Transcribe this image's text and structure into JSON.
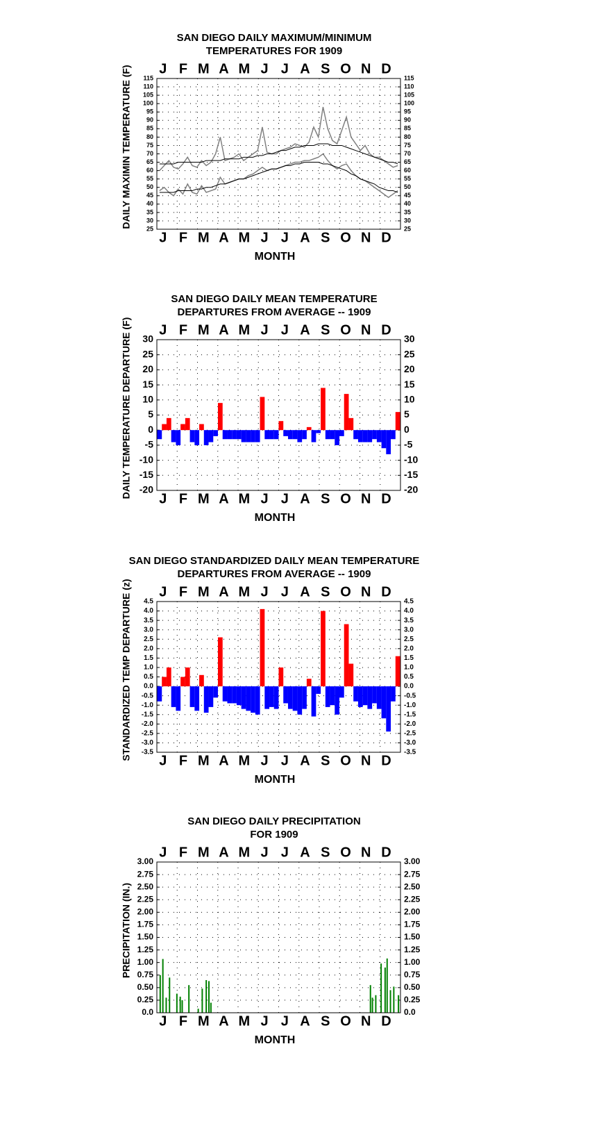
{
  "chart_data": [
    {
      "type": "line",
      "title": [
        "SAN DIEGO DAILY MAXIMUM/MINIMUM",
        "TEMPERATURES FOR 1909"
      ],
      "xlabel": "MONTH",
      "ylabel": "DAILY MAXIMIN TEMPERATURE (F)",
      "categories": [
        "J",
        "F",
        "M",
        "A",
        "M",
        "J",
        "J",
        "A",
        "S",
        "O",
        "N",
        "D"
      ],
      "xlim": [
        0,
        365
      ],
      "x": [
        4,
        11,
        18,
        25,
        32,
        39,
        46,
        53,
        60,
        67,
        74,
        81,
        88,
        95,
        102,
        109,
        116,
        123,
        130,
        137,
        144,
        151,
        158,
        165,
        172,
        179,
        186,
        193,
        200,
        207,
        214,
        221,
        228,
        235,
        242,
        249,
        256,
        263,
        270,
        277,
        284,
        291,
        298,
        305,
        312,
        319,
        326,
        333,
        340,
        347,
        354,
        361
      ],
      "series": [
        {
          "color": "#808080",
          "values": [
            60,
            63,
            66,
            62,
            61,
            64,
            68,
            63,
            62,
            66,
            63,
            65,
            70,
            80,
            66,
            67,
            68,
            70,
            66,
            68,
            70,
            72,
            86,
            71,
            70,
            70,
            72,
            73,
            74,
            76,
            75,
            74,
            77,
            86,
            80,
            98,
            85,
            78,
            76,
            84,
            92,
            80,
            76,
            72,
            75,
            70,
            68,
            68,
            66,
            64,
            62,
            63
          ]
        },
        {
          "color": "#808080",
          "values": [
            48,
            50,
            47,
            45,
            49,
            46,
            52,
            47,
            46,
            51,
            47,
            48,
            49,
            56,
            52,
            53,
            54,
            55,
            55,
            57,
            58,
            60,
            62,
            60,
            61,
            61,
            62,
            63,
            64,
            65,
            65,
            66,
            66,
            67,
            68,
            70,
            66,
            63,
            61,
            63,
            64,
            60,
            57,
            55,
            54,
            52,
            50,
            48,
            46,
            44,
            46,
            48
          ]
        },
        {
          "color": "#000000",
          "values": [
            64,
            64,
            64,
            64,
            65,
            65,
            65,
            65,
            65,
            65,
            66,
            66,
            66,
            66,
            67,
            67,
            67,
            67,
            68,
            68,
            68,
            69,
            69,
            70,
            70,
            71,
            72,
            72,
            73,
            74,
            74,
            75,
            75,
            75,
            76,
            76,
            76,
            75,
            75,
            75,
            74,
            73,
            72,
            71,
            70,
            69,
            68,
            67,
            66,
            65,
            65,
            64
          ]
        },
        {
          "color": "#000000",
          "values": [
            47,
            47,
            47,
            47,
            48,
            48,
            48,
            48,
            49,
            49,
            50,
            50,
            51,
            52,
            52,
            53,
            54,
            55,
            55,
            56,
            57,
            58,
            59,
            60,
            61,
            61,
            62,
            63,
            63,
            64,
            64,
            65,
            65,
            65,
            65,
            64,
            64,
            63,
            62,
            61,
            60,
            58,
            57,
            55,
            54,
            53,
            52,
            50,
            49,
            48,
            48,
            47
          ]
        }
      ],
      "ylim": [
        25,
        115
      ],
      "yticks": [
        25,
        30,
        35,
        40,
        45,
        50,
        55,
        60,
        65,
        70,
        75,
        80,
        85,
        90,
        95,
        100,
        105,
        110,
        115
      ],
      "grid": true
    },
    {
      "type": "bar",
      "title": [
        "SAN DIEGO DAILY MEAN TEMPERATURE",
        "DEPARTURES FROM AVERAGE -- 1909"
      ],
      "xlabel": "MONTH",
      "ylabel": "DAILY TEMPERATURE DEPARTURE (F)",
      "categories": [
        "J",
        "F",
        "M",
        "A",
        "M",
        "J",
        "J",
        "A",
        "S",
        "O",
        "N",
        "D"
      ],
      "xlim": [
        0,
        365
      ],
      "x": [
        4,
        11,
        18,
        25,
        32,
        39,
        46,
        53,
        60,
        67,
        74,
        81,
        88,
        95,
        102,
        109,
        116,
        123,
        130,
        137,
        144,
        151,
        158,
        165,
        172,
        179,
        186,
        193,
        200,
        207,
        214,
        221,
        228,
        235,
        242,
        249,
        256,
        263,
        270,
        277,
        284,
        291,
        298,
        305,
        312,
        319,
        326,
        333,
        340,
        347,
        354,
        361
      ],
      "values": [
        -3,
        2,
        4,
        -4,
        -5,
        2,
        4,
        -4,
        -5,
        2,
        -5,
        -4,
        -2,
        9,
        -3,
        -3,
        -3,
        -3,
        -4,
        -4,
        -4,
        -4,
        11,
        -3,
        -3,
        -3,
        3,
        -2,
        -3,
        -3,
        -4,
        -3,
        1,
        -4,
        -1,
        14,
        -3,
        -3,
        -5,
        -2,
        12,
        4,
        -3,
        -4,
        -4,
        -4,
        -3,
        -4,
        -6,
        -8,
        -3,
        6
      ],
      "colors": {
        "positive": "#ff0000",
        "negative": "#0000ff"
      },
      "ylim": [
        -20,
        30
      ],
      "yticks": [
        -20,
        -15,
        -10,
        -5,
        0,
        5,
        10,
        15,
        20,
        25,
        30
      ],
      "grid": true
    },
    {
      "type": "bar",
      "title": [
        "SAN DIEGO STANDARDIZED DAILY MEAN TEMPERATURE",
        "DEPARTURES FROM AVERAGE -- 1909"
      ],
      "xlabel": "MONTH",
      "ylabel": "STANDARDIZED TEMP DEPARTURE (z)",
      "categories": [
        "J",
        "F",
        "M",
        "A",
        "M",
        "J",
        "J",
        "A",
        "S",
        "O",
        "N",
        "D"
      ],
      "xlim": [
        0,
        365
      ],
      "x": [
        4,
        11,
        18,
        25,
        32,
        39,
        46,
        53,
        60,
        67,
        74,
        81,
        88,
        95,
        102,
        109,
        116,
        123,
        130,
        137,
        144,
        151,
        158,
        165,
        172,
        179,
        186,
        193,
        200,
        207,
        214,
        221,
        228,
        235,
        242,
        249,
        256,
        263,
        270,
        277,
        284,
        291,
        298,
        305,
        312,
        319,
        326,
        333,
        340,
        347,
        354,
        361
      ],
      "values": [
        -0.8,
        0.5,
        1.0,
        -1.1,
        -1.3,
        0.5,
        1.0,
        -1.1,
        -1.3,
        0.6,
        -1.4,
        -1.1,
        -0.6,
        2.6,
        -0.8,
        -0.9,
        -0.9,
        -1.0,
        -1.2,
        -1.3,
        -1.4,
        -1.5,
        4.1,
        -1.2,
        -1.1,
        -1.2,
        1.0,
        -0.9,
        -1.2,
        -1.3,
        -1.5,
        -1.2,
        0.4,
        -1.6,
        -0.4,
        4.0,
        -1.1,
        -1.0,
        -1.5,
        -0.6,
        3.3,
        1.2,
        -0.8,
        -1.1,
        -1.0,
        -1.2,
        -0.9,
        -1.2,
        -1.7,
        -2.4,
        -0.8,
        1.6
      ],
      "colors": {
        "positive": "#ff0000",
        "negative": "#0000ff"
      },
      "ylim": [
        -3.5,
        4.5
      ],
      "yticks": [
        -3.5,
        {
          "value": -3,
          "label": "-3.0"
        },
        -2.5,
        {
          "value": -2,
          "label": "-2.0"
        },
        -1.5,
        {
          "value": -1,
          "label": "-1.0"
        },
        -0.5,
        {
          "value": 0,
          "label": "0.0"
        },
        0.5,
        {
          "value": 1,
          "label": "1.0"
        },
        1.5,
        {
          "value": 2,
          "label": "2.0"
        },
        2.5,
        {
          "value": 3,
          "label": "3.0"
        },
        3.5,
        {
          "value": 4,
          "label": "4.0"
        },
        4.5
      ],
      "grid": true
    },
    {
      "type": "bar",
      "title": [
        "SAN DIEGO DAILY PRECIPITATION",
        "FOR 1909"
      ],
      "xlabel": "MONTH",
      "ylabel": "PRECIPITATION (IN.)",
      "categories": [
        "J",
        "F",
        "M",
        "A",
        "M",
        "J",
        "J",
        "A",
        "S",
        "O",
        "N",
        "D"
      ],
      "xlim": [
        0,
        365
      ],
      "x": [
        5,
        9,
        14,
        19,
        30,
        35,
        38,
        48,
        62,
        68,
        74,
        78,
        81,
        320,
        323,
        328,
        336,
        342,
        345,
        350,
        355,
        362
      ],
      "values": [
        0.75,
        1.07,
        0.3,
        0.7,
        0.38,
        0.32,
        0.25,
        0.55,
        0.08,
        0.48,
        0.65,
        0.63,
        0.2,
        0.55,
        0.3,
        0.35,
        0.98,
        0.9,
        1.08,
        0.45,
        0.52,
        0.35
      ],
      "color": "#008000",
      "ylim": [
        0,
        3
      ],
      "yticks": [
        {
          "value": 0,
          "label": "0.0"
        },
        {
          "value": 0.25,
          "label": "0.25"
        },
        {
          "value": 0.5,
          "label": "0.50"
        },
        {
          "value": 0.75,
          "label": "0.75"
        },
        {
          "value": 1,
          "label": "1.00"
        },
        {
          "value": 1.25,
          "label": "1.25"
        },
        {
          "value": 1.5,
          "label": "1.50"
        },
        {
          "value": 1.75,
          "label": "1.75"
        },
        {
          "value": 2,
          "label": "2.00"
        },
        {
          "value": 2.25,
          "label": "2.25"
        },
        {
          "value": 2.5,
          "label": "2.50"
        },
        {
          "value": 2.75,
          "label": "2.75"
        },
        {
          "value": 3,
          "label": "3.00"
        }
      ],
      "grid": true
    }
  ]
}
